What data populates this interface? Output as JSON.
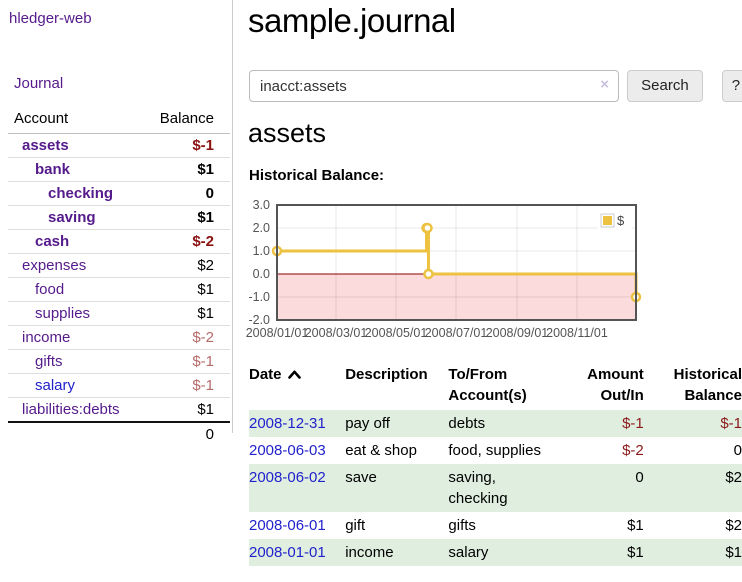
{
  "app": {
    "title": "hledger-web"
  },
  "sidebar": {
    "journal_link": "Journal",
    "account_header": "Account",
    "balance_header": "Balance",
    "accounts": [
      {
        "name": "assets",
        "indent": 0,
        "bold": true,
        "name_color": "purple",
        "balance": "$-1",
        "balance_style": "neg-strong"
      },
      {
        "name": "bank",
        "indent": 1,
        "bold": true,
        "name_color": "purple",
        "balance": "$1",
        "balance_style": "pos"
      },
      {
        "name": "checking",
        "indent": 2,
        "bold": true,
        "name_color": "purple",
        "balance": "0",
        "balance_style": "pos"
      },
      {
        "name": "saving",
        "indent": 2,
        "bold": true,
        "name_color": "purple",
        "balance": "$1",
        "balance_style": "pos"
      },
      {
        "name": "cash",
        "indent": 1,
        "bold": true,
        "name_color": "purple",
        "balance": "$-2",
        "balance_style": "neg-strong"
      },
      {
        "name": "expenses",
        "indent": 0,
        "bold": false,
        "name_color": "purple",
        "balance": "$2",
        "balance_style": "pos"
      },
      {
        "name": "food",
        "indent": 1,
        "bold": false,
        "name_color": "purple",
        "balance": "$1",
        "balance_style": "pos"
      },
      {
        "name": "supplies",
        "indent": 1,
        "bold": false,
        "name_color": "purple",
        "balance": "$1",
        "balance_style": "pos"
      },
      {
        "name": "income",
        "indent": 0,
        "bold": false,
        "name_color": "purple",
        "balance": "$-2",
        "balance_style": "neg-muted"
      },
      {
        "name": "gifts",
        "indent": 1,
        "bold": false,
        "name_color": "purple",
        "balance": "$-1",
        "balance_style": "neg-muted"
      },
      {
        "name": "salary",
        "indent": 1,
        "bold": false,
        "name_color": "blue",
        "balance": "$-1",
        "balance_style": "neg-muted"
      },
      {
        "name": "liabilities:debts",
        "indent": 0,
        "bold": false,
        "name_color": "purple",
        "balance": "$1",
        "balance_style": "pos"
      }
    ],
    "total": "0"
  },
  "main": {
    "title": "sample.journal",
    "search": {
      "value": "inacct:assets",
      "clear_icon": "×",
      "search_button": "Search",
      "help_button": "?"
    },
    "account_heading": "assets",
    "chart_label": "Historical Balance:"
  },
  "chart_data": {
    "type": "line",
    "title": "Historical Balance",
    "step": true,
    "series": [
      {
        "name": "$",
        "color": "#edc240",
        "points": [
          [
            "2008-01-01",
            1
          ],
          [
            "2008-06-01",
            2
          ],
          [
            "2008-06-02",
            2
          ],
          [
            "2008-06-03",
            0
          ],
          [
            "2008-12-31",
            -1
          ]
        ]
      }
    ],
    "x_range": [
      "2008-01-01",
      "2008-12-31"
    ],
    "x_tick_labels": [
      "2008/01/01",
      "2008/03/01",
      "2008/05/01",
      "2008/07/01",
      "2008/09/01",
      "2008/11/01"
    ],
    "ylim": [
      -2,
      3
    ],
    "y_ticks": [
      3.0,
      2.0,
      1.0,
      0.0,
      -1.0,
      -2.0
    ],
    "legend_position": "top-right",
    "legend_label": "$",
    "grid": true,
    "colors": {
      "border": "#545454",
      "gridline": "rgba(0,0,0,0.09)",
      "negative_region": "#fbdbdb",
      "zero_line": "#8b0000",
      "tick_text": "#545454",
      "marker_fill": "#ffffff"
    }
  },
  "register": {
    "headers": {
      "date": "Date",
      "description": "Description",
      "accounts": "To/From\nAccount(s)",
      "amount": "Amount\nOut/In",
      "balance": "Historical\nBalance"
    },
    "rows": [
      {
        "date": "2008-12-31",
        "description": "pay off",
        "accounts": "debts",
        "amount": "$-1",
        "amount_neg": true,
        "balance": "$-1",
        "balance_neg": true
      },
      {
        "date": "2008-06-03",
        "description": "eat & shop",
        "accounts": "food, supplies",
        "amount": "$-2",
        "amount_neg": true,
        "balance": "0",
        "balance_neg": false
      },
      {
        "date": "2008-06-02",
        "description": "save",
        "accounts": "saving,\nchecking",
        "amount": "0",
        "amount_neg": false,
        "balance": "$2",
        "balance_neg": false
      },
      {
        "date": "2008-06-01",
        "description": "gift",
        "accounts": "gifts",
        "amount": "$1",
        "amount_neg": false,
        "balance": "$2",
        "balance_neg": false
      },
      {
        "date": "2008-01-01",
        "description": "income",
        "accounts": "salary",
        "amount": "$1",
        "amount_neg": false,
        "balance": "$1",
        "balance_neg": false
      }
    ]
  }
}
